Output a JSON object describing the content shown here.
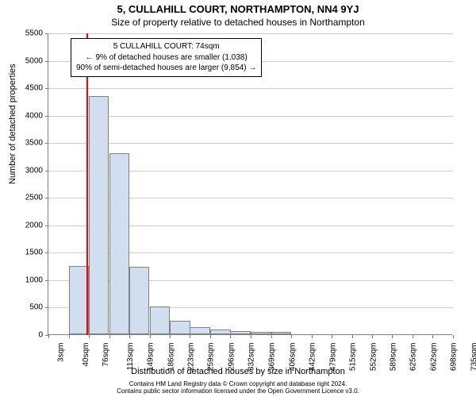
{
  "supertitle": "5, CULLAHILL COURT, NORTHAMPTON, NN4 9YJ",
  "title": "Size of property relative to detached houses in Northampton",
  "chart": {
    "type": "histogram",
    "background_color": "#ffffff",
    "grid_color": "#cccccc",
    "axis_color": "#808080",
    "bar_fill_color": "#d1deef",
    "bar_border_color": "#808080",
    "marker_line_color": "#ff0000",
    "title_fontsize": 13,
    "label_fontsize": 11,
    "tick_fontsize": 10,
    "ylabel": "Number of detached properties",
    "xlabel": "Distribution of detached houses by size in Northampton",
    "ylim": [
      0,
      5500
    ],
    "ytick_step": 500,
    "yticks": [
      0,
      500,
      1000,
      1500,
      2000,
      2500,
      3000,
      3500,
      4000,
      4500,
      5000,
      5500
    ],
    "xlim_sqm": [
      3,
      735
    ],
    "xtick_labels": [
      "3sqm",
      "40sqm",
      "76sqm",
      "113sqm",
      "149sqm",
      "186sqm",
      "223sqm",
      "259sqm",
      "296sqm",
      "332sqm",
      "369sqm",
      "406sqm",
      "442sqm",
      "479sqm",
      "515sqm",
      "552sqm",
      "589sqm",
      "625sqm",
      "662sqm",
      "698sqm",
      "735sqm"
    ],
    "xtick_values_sqm": [
      3,
      40,
      76,
      113,
      149,
      186,
      223,
      259,
      296,
      332,
      369,
      406,
      442,
      479,
      515,
      552,
      589,
      625,
      662,
      698,
      735
    ],
    "bar_width_sqm": 36.6,
    "bars": [
      {
        "start_sqm": 3,
        "count": 0
      },
      {
        "start_sqm": 40,
        "count": 1240
      },
      {
        "start_sqm": 76,
        "count": 4340
      },
      {
        "start_sqm": 113,
        "count": 3300
      },
      {
        "start_sqm": 149,
        "count": 1230
      },
      {
        "start_sqm": 186,
        "count": 500
      },
      {
        "start_sqm": 223,
        "count": 250
      },
      {
        "start_sqm": 259,
        "count": 130
      },
      {
        "start_sqm": 296,
        "count": 80
      },
      {
        "start_sqm": 332,
        "count": 55
      },
      {
        "start_sqm": 369,
        "count": 45
      },
      {
        "start_sqm": 406,
        "count": 40
      },
      {
        "start_sqm": 442,
        "count": 0
      },
      {
        "start_sqm": 479,
        "count": 0
      },
      {
        "start_sqm": 515,
        "count": 0
      },
      {
        "start_sqm": 552,
        "count": 0
      },
      {
        "start_sqm": 589,
        "count": 0
      },
      {
        "start_sqm": 625,
        "count": 0
      },
      {
        "start_sqm": 662,
        "count": 0
      },
      {
        "start_sqm": 698,
        "count": 0
      }
    ],
    "marker_value_sqm": 74,
    "info_box": {
      "line1": "5 CULLAHILL COURT: 74sqm",
      "line2": "← 9% of detached houses are smaller (1,038)",
      "line3": "90% of semi-detached houses are larger (9,854) →",
      "border_color": "#000000",
      "background_color": "#ffffff",
      "fontsize": 10
    }
  },
  "footer_line1": "Contains HM Land Registry data © Crown copyright and database right 2024.",
  "footer_line2": "Contains public sector information licensed under the Open Government Licence v3.0."
}
